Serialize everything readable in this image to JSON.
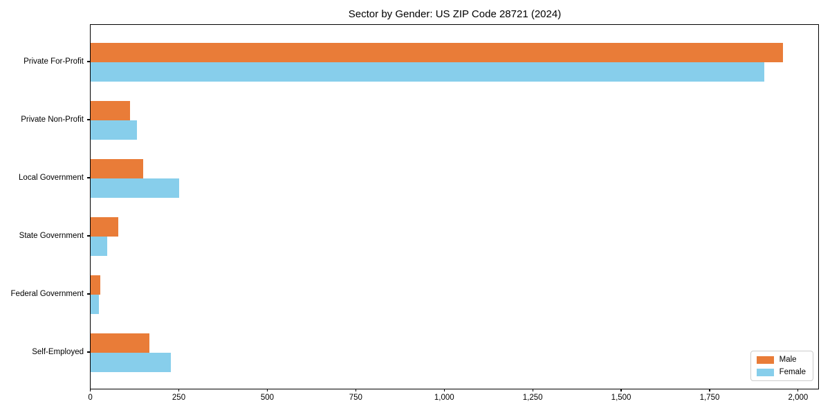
{
  "chart_data": {
    "type": "bar",
    "orientation": "horizontal",
    "title": "Sector by Gender: US ZIP Code 28721 (2024)",
    "xlabel": "",
    "ylabel": "",
    "categories": [
      "Private For-Profit",
      "Private Non-Profit",
      "Local Government",
      "State Government",
      "Federal Government",
      "Self-Employed"
    ],
    "series": [
      {
        "name": "Male",
        "color": "#e97c38",
        "values": [
          1961,
          112,
          149,
          78,
          28,
          167
        ]
      },
      {
        "name": "Female",
        "color": "#87ceeb",
        "values": [
          1908,
          132,
          251,
          47,
          23,
          228
        ]
      }
    ],
    "xlim": [
      0,
      2060
    ],
    "xticks": [
      0,
      250,
      500,
      750,
      1000,
      1250,
      1500,
      1750,
      2000
    ],
    "xtick_labels": [
      "0",
      "250",
      "500",
      "750",
      "1,000",
      "1,250",
      "1,500",
      "1,750",
      "2,000"
    ],
    "grid": false,
    "legend": {
      "position": "lower right"
    }
  }
}
